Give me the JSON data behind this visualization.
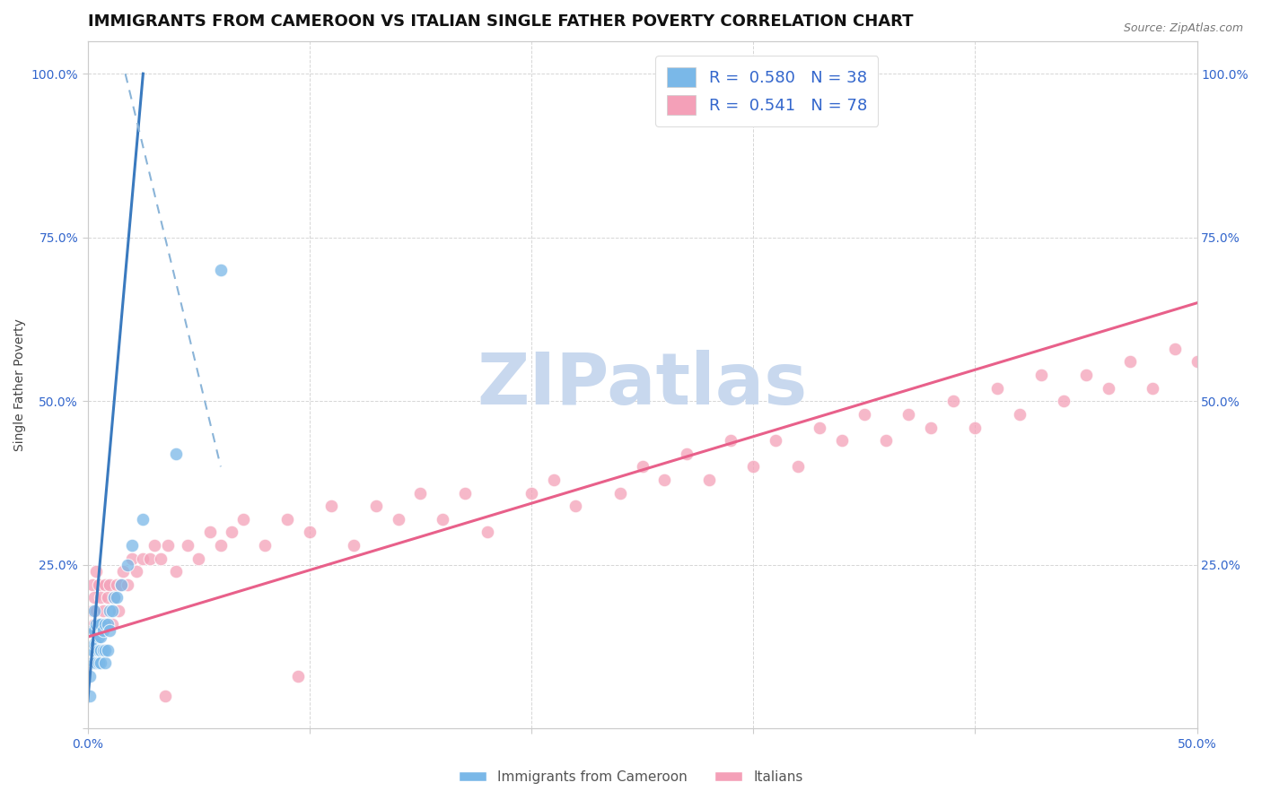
{
  "title": "IMMIGRANTS FROM CAMEROON VS ITALIAN SINGLE FATHER POVERTY CORRELATION CHART",
  "source": "Source: ZipAtlas.com",
  "ylabel": "Single Father Poverty",
  "xlim": [
    0.0,
    0.5
  ],
  "ylim": [
    0.0,
    1.05
  ],
  "xticks": [
    0.0,
    0.1,
    0.2,
    0.3,
    0.4,
    0.5
  ],
  "xticklabels": [
    "0.0%",
    "",
    "",
    "",
    "",
    "50.0%"
  ],
  "yticks": [
    0.0,
    0.25,
    0.5,
    0.75,
    1.0
  ],
  "yticklabels": [
    "",
    "25.0%",
    "50.0%",
    "75.0%",
    "100.0%"
  ],
  "blue_R": 0.58,
  "blue_N": 38,
  "pink_R": 0.541,
  "pink_N": 78,
  "blue_color": "#7ab8e8",
  "pink_color": "#f4a0b8",
  "blue_line_color": "#3a7abf",
  "pink_line_color": "#e8608a",
  "watermark": "ZIPatlas",
  "watermark_color": "#c8d8ee",
  "legend1_label": "Immigrants from Cameroon",
  "legend2_label": "Italians",
  "blue_scatter_x": [
    0.001,
    0.001,
    0.002,
    0.002,
    0.002,
    0.003,
    0.003,
    0.003,
    0.003,
    0.004,
    0.004,
    0.004,
    0.005,
    0.005,
    0.005,
    0.005,
    0.006,
    0.006,
    0.006,
    0.006,
    0.007,
    0.007,
    0.008,
    0.008,
    0.008,
    0.009,
    0.009,
    0.01,
    0.01,
    0.011,
    0.012,
    0.013,
    0.015,
    0.018,
    0.02,
    0.025,
    0.04,
    0.06
  ],
  "blue_scatter_y": [
    0.05,
    0.08,
    0.1,
    0.12,
    0.15,
    0.1,
    0.13,
    0.15,
    0.18,
    0.1,
    0.13,
    0.16,
    0.1,
    0.12,
    0.14,
    0.16,
    0.1,
    0.12,
    0.14,
    0.16,
    0.12,
    0.15,
    0.1,
    0.12,
    0.16,
    0.12,
    0.16,
    0.15,
    0.18,
    0.18,
    0.2,
    0.2,
    0.22,
    0.25,
    0.28,
    0.32,
    0.42,
    0.7
  ],
  "pink_scatter_x": [
    0.001,
    0.002,
    0.002,
    0.003,
    0.003,
    0.004,
    0.004,
    0.005,
    0.005,
    0.006,
    0.007,
    0.008,
    0.009,
    0.01,
    0.011,
    0.012,
    0.013,
    0.014,
    0.015,
    0.016,
    0.018,
    0.02,
    0.022,
    0.025,
    0.028,
    0.03,
    0.033,
    0.036,
    0.04,
    0.045,
    0.05,
    0.055,
    0.06,
    0.065,
    0.07,
    0.08,
    0.09,
    0.1,
    0.11,
    0.12,
    0.13,
    0.14,
    0.15,
    0.16,
    0.17,
    0.18,
    0.2,
    0.21,
    0.22,
    0.24,
    0.25,
    0.26,
    0.27,
    0.28,
    0.29,
    0.3,
    0.31,
    0.32,
    0.33,
    0.34,
    0.35,
    0.36,
    0.37,
    0.38,
    0.39,
    0.4,
    0.41,
    0.42,
    0.43,
    0.44,
    0.45,
    0.46,
    0.47,
    0.48,
    0.49,
    0.5,
    0.035,
    0.095
  ],
  "pink_scatter_y": [
    0.15,
    0.18,
    0.22,
    0.16,
    0.2,
    0.18,
    0.24,
    0.16,
    0.22,
    0.2,
    0.18,
    0.22,
    0.2,
    0.22,
    0.16,
    0.2,
    0.22,
    0.18,
    0.22,
    0.24,
    0.22,
    0.26,
    0.24,
    0.26,
    0.26,
    0.28,
    0.26,
    0.28,
    0.24,
    0.28,
    0.26,
    0.3,
    0.28,
    0.3,
    0.32,
    0.28,
    0.32,
    0.3,
    0.34,
    0.28,
    0.34,
    0.32,
    0.36,
    0.32,
    0.36,
    0.3,
    0.36,
    0.38,
    0.34,
    0.36,
    0.4,
    0.38,
    0.42,
    0.38,
    0.44,
    0.4,
    0.44,
    0.4,
    0.46,
    0.44,
    0.48,
    0.44,
    0.48,
    0.46,
    0.5,
    0.46,
    0.52,
    0.48,
    0.54,
    0.5,
    0.54,
    0.52,
    0.56,
    0.52,
    0.58,
    0.56,
    0.05,
    0.08
  ],
  "blue_line_x0": 0.0,
  "blue_line_y0": 0.04,
  "blue_line_x1": 0.025,
  "blue_line_y1": 1.0,
  "pink_line_x0": 0.0,
  "pink_line_y0": 0.14,
  "pink_line_x1": 0.5,
  "pink_line_y1": 0.65,
  "dashed_line_x0": 0.017,
  "dashed_line_y0": 1.0,
  "dashed_line_x1": 0.06,
  "dashed_line_y1": 0.4,
  "grid_color": "#cccccc",
  "bg_color": "#ffffff",
  "title_fontsize": 13,
  "axis_fontsize": 10,
  "tick_fontsize": 10,
  "tick_color": "#3366cc"
}
